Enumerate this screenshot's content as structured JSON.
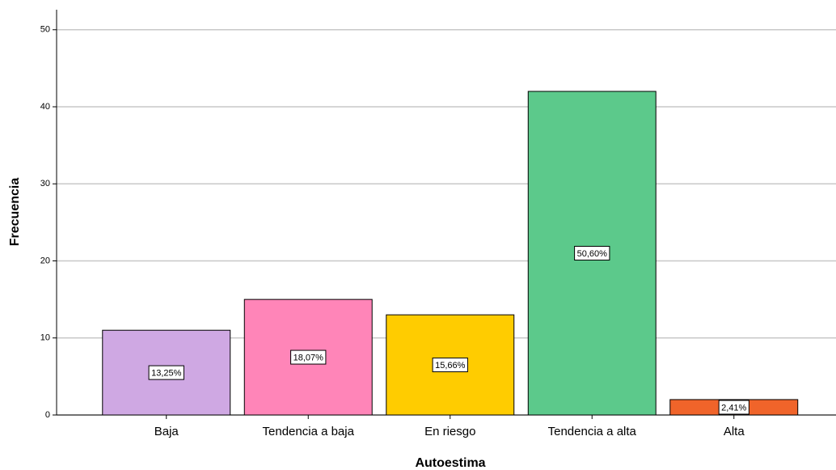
{
  "chart_data": {
    "type": "bar",
    "x_label": "Autoestima",
    "y_label": "Frecuencia",
    "categories": [
      "Baja",
      "Tendencia a baja",
      "En riesgo",
      "Tendencia a alta",
      "Alta"
    ],
    "values": [
      11,
      15,
      13,
      42,
      2
    ],
    "percentage_labels": [
      "13,25%",
      "18,07%",
      "15,66%",
      "50,60%",
      "2,41%"
    ],
    "colors": [
      "#cfa8e3",
      "#ff85b8",
      "#ffcc00",
      "#5cc98b",
      "#f0642a"
    ],
    "ylim": [
      0,
      52.6
    ],
    "yticks": [
      0,
      10,
      20,
      30,
      40,
      50
    ],
    "grid": true
  }
}
